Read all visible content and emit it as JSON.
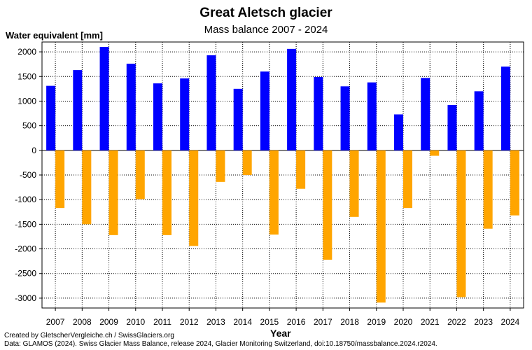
{
  "chart_data": {
    "type": "bar",
    "title": "Great Aletsch glacier",
    "subtitle": "Mass balance 2007 - 2024",
    "ylabel": "Water equivalent [mm]",
    "xlabel": "Year",
    "ylim": [
      -3200,
      2200
    ],
    "yticks": [
      2000,
      1500,
      1000,
      500,
      0,
      -500,
      -1000,
      -1500,
      -2000,
      -2500,
      -3000
    ],
    "grid": true,
    "categories": [
      "2007",
      "2008",
      "2009",
      "2010",
      "2011",
      "2012",
      "2013",
      "2014",
      "2015",
      "2016",
      "2017",
      "2018",
      "2019",
      "2020",
      "2021",
      "2022",
      "2023",
      "2024"
    ],
    "series": [
      {
        "name": "",
        "color": "#0000ff",
        "values": [
          1310,
          1630,
          2100,
          1760,
          1360,
          1460,
          1930,
          1250,
          1600,
          2060,
          1490,
          1300,
          1380,
          730,
          1470,
          920,
          1200,
          1700
        ]
      },
      {
        "name": "",
        "color": "#ffa500",
        "values": [
          -1170,
          -1500,
          -1720,
          -990,
          -1720,
          -1940,
          -640,
          -500,
          -1710,
          -780,
          -2220,
          -1350,
          -3090,
          -1170,
          -110,
          -2980,
          -1590,
          -1320
        ]
      }
    ]
  },
  "credits": {
    "line1": "Created by GletscherVergleiche.ch / SwissGlaciers.org",
    "line2": "Data: GLAMOS (2024). Swiss Glacier Mass Balance, release 2024, Glacier Monitoring Switzerland, doi:10.18750/massbalance.2024.r2024."
  }
}
